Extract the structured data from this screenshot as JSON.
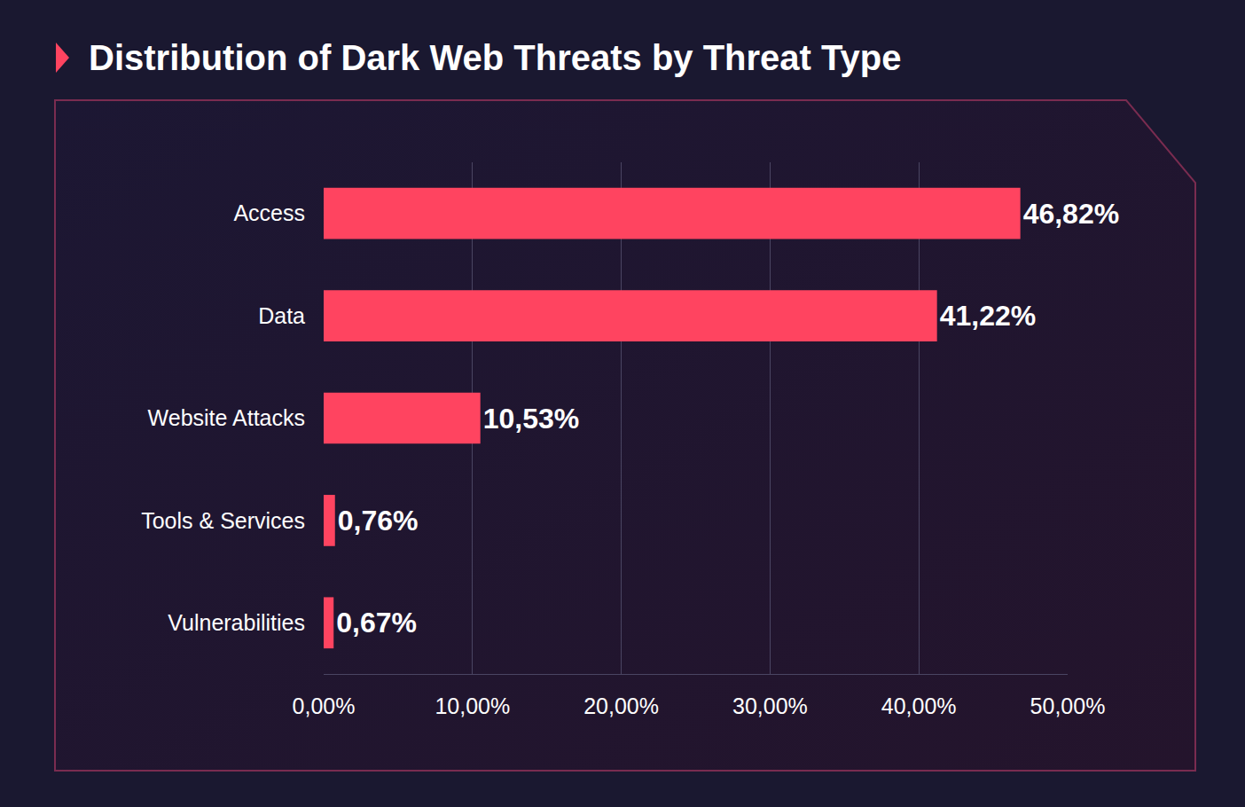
{
  "chart_data": {
    "type": "bar",
    "title": "Distribution of Dark Web Threats by Threat Type",
    "orientation": "horizontal",
    "categories": [
      "Access",
      "Data",
      "Website Attacks",
      "Tools & Services",
      "Vulnerabilities"
    ],
    "values": [
      46.82,
      41.22,
      10.53,
      0.76,
      0.67
    ],
    "value_labels": [
      "46,82%",
      "41,22%",
      "10,53%",
      "0,76%",
      "0,67%"
    ],
    "color": "#ff4460",
    "xlim": [
      0,
      50
    ],
    "xticks": [
      {
        "value": 0,
        "label": "0,00%"
      },
      {
        "value": 10,
        "label": "10,00%"
      },
      {
        "value": 20,
        "label": "20,00%"
      },
      {
        "value": 30,
        "label": "30,00%"
      },
      {
        "value": 40,
        "label": "40,00%"
      },
      {
        "value": 50,
        "label": "50,00%"
      }
    ],
    "grid": true,
    "data_labels": true
  }
}
